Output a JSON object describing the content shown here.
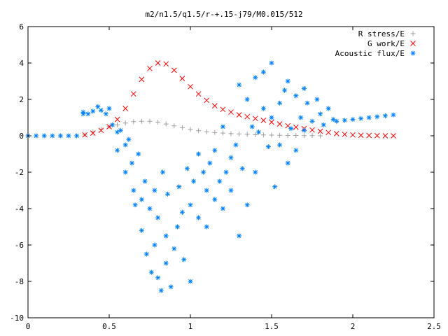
{
  "chart_data": {
    "type": "scatter",
    "title": "m2/n1.5/q1.5/r-+.15-j79/M0.015/512",
    "xlabel": "",
    "ylabel": "",
    "xlim": [
      0,
      2.5
    ],
    "ylim": [
      -10,
      6
    ],
    "grid": false,
    "legend_position": "top-right",
    "x_ticks": [
      "0",
      "0.5",
      "1",
      "1.5",
      "2",
      "2.5"
    ],
    "y_ticks": [
      "6",
      "4",
      "2",
      "0",
      "-2",
      "-4",
      "-6",
      "-8",
      "-10"
    ],
    "series": [
      {
        "name": "R stress/E",
        "marker": "+",
        "color": "#a0a0a0",
        "x": [
          0.35,
          0.4,
          0.45,
          0.5,
          0.55,
          0.6,
          0.65,
          0.7,
          0.75,
          0.8,
          0.85,
          0.9,
          0.95,
          1.0,
          1.05,
          1.1,
          1.15,
          1.2,
          1.25,
          1.3,
          1.35,
          1.4,
          1.45,
          1.5,
          1.55,
          1.6,
          1.65,
          1.7,
          1.75,
          1.8
        ],
        "y": [
          0.05,
          0.2,
          0.35,
          0.5,
          0.6,
          0.7,
          0.78,
          0.8,
          0.8,
          0.75,
          0.65,
          0.55,
          0.45,
          0.35,
          0.28,
          0.22,
          0.18,
          0.15,
          0.12,
          0.1,
          0.08,
          0.06,
          0.05,
          0.04,
          0.03,
          0.02,
          0.02,
          0.01,
          0.01,
          0.0
        ]
      },
      {
        "name": "G work/E",
        "marker": "x",
        "color": "#ff0000",
        "x": [
          0.35,
          0.4,
          0.45,
          0.5,
          0.55,
          0.6,
          0.65,
          0.7,
          0.75,
          0.8,
          0.85,
          0.9,
          0.95,
          1.0,
          1.05,
          1.1,
          1.15,
          1.2,
          1.25,
          1.3,
          1.35,
          1.4,
          1.45,
          1.5,
          1.55,
          1.6,
          1.65,
          1.7,
          1.75,
          1.8,
          1.85,
          1.9,
          1.95,
          2.0,
          2.05,
          2.1,
          2.15,
          2.2,
          2.25
        ],
        "y": [
          0.05,
          0.15,
          0.3,
          0.5,
          0.9,
          1.5,
          2.3,
          3.1,
          3.7,
          4.0,
          3.95,
          3.6,
          3.15,
          2.7,
          2.3,
          1.95,
          1.65,
          1.45,
          1.3,
          1.15,
          1.05,
          0.95,
          0.85,
          0.75,
          0.65,
          0.55,
          0.47,
          0.4,
          0.32,
          0.25,
          0.18,
          0.12,
          0.08,
          0.05,
          0.03,
          0.02,
          0.01,
          0.0,
          0.0
        ]
      },
      {
        "name": "Acoustic flux/E",
        "marker": "*",
        "color": "#0080ff",
        "x": [
          0.0,
          0.05,
          0.1,
          0.15,
          0.2,
          0.25,
          0.3,
          0.34,
          0.34,
          0.37,
          0.4,
          0.43,
          0.45,
          0.48,
          0.5,
          0.52,
          0.55,
          0.55,
          0.57,
          0.6,
          0.6,
          0.62,
          0.64,
          0.65,
          0.66,
          0.68,
          0.7,
          0.7,
          0.72,
          0.73,
          0.75,
          0.76,
          0.78,
          0.78,
          0.8,
          0.8,
          0.82,
          0.83,
          0.85,
          0.85,
          0.86,
          0.88,
          0.9,
          0.92,
          0.93,
          0.95,
          0.96,
          0.98,
          1.0,
          1.0,
          1.02,
          1.05,
          1.05,
          1.08,
          1.1,
          1.1,
          1.12,
          1.15,
          1.15,
          1.18,
          1.2,
          1.2,
          1.22,
          1.25,
          1.25,
          1.28,
          1.3,
          1.3,
          1.32,
          1.35,
          1.35,
          1.38,
          1.4,
          1.4,
          1.42,
          1.45,
          1.45,
          1.48,
          1.5,
          1.5,
          1.52,
          1.55,
          1.55,
          1.58,
          1.6,
          1.6,
          1.62,
          1.65,
          1.65,
          1.68,
          1.7,
          1.7,
          1.72,
          1.75,
          1.78,
          1.8,
          1.82,
          1.85,
          1.88,
          1.9,
          1.95,
          2.0,
          2.05,
          2.1,
          2.15,
          2.2,
          2.25
        ],
        "y": [
          0.0,
          0.0,
          0.0,
          0.0,
          0.0,
          0.0,
          0.0,
          1.2,
          1.3,
          1.2,
          1.35,
          1.6,
          1.4,
          1.2,
          1.5,
          0.6,
          0.2,
          -0.8,
          0.3,
          -0.5,
          -2.0,
          -0.2,
          -1.5,
          -3.0,
          -3.8,
          -1.0,
          -3.5,
          -5.2,
          -2.5,
          -6.5,
          -4.0,
          -7.5,
          -3.0,
          -6.0,
          -7.8,
          -4.5,
          -8.5,
          -2.0,
          -5.5,
          -7.0,
          -3.2,
          -8.3,
          -6.2,
          -5.0,
          -2.8,
          -4.2,
          -6.8,
          -1.8,
          -8.0,
          -3.8,
          -2.5,
          -1.0,
          -4.5,
          -2.0,
          -3.0,
          -5.0,
          -1.5,
          -0.8,
          -3.5,
          -2.5,
          0.5,
          -4.0,
          -2.0,
          -1.2,
          -3.0,
          -0.5,
          2.8,
          -5.5,
          -1.8,
          2.0,
          -3.8,
          0.5,
          3.2,
          -2.0,
          0.2,
          1.5,
          3.5,
          -0.6,
          4.0,
          1.0,
          -2.8,
          1.8,
          -0.5,
          2.5,
          3.0,
          -1.5,
          0.4,
          2.2,
          -0.8,
          1.0,
          2.6,
          0.3,
          1.8,
          0.8,
          2.0,
          1.2,
          0.6,
          1.5,
          0.9,
          0.8,
          0.85,
          0.9,
          0.95,
          1.0,
          1.05,
          1.1,
          1.15
        ]
      }
    ]
  }
}
